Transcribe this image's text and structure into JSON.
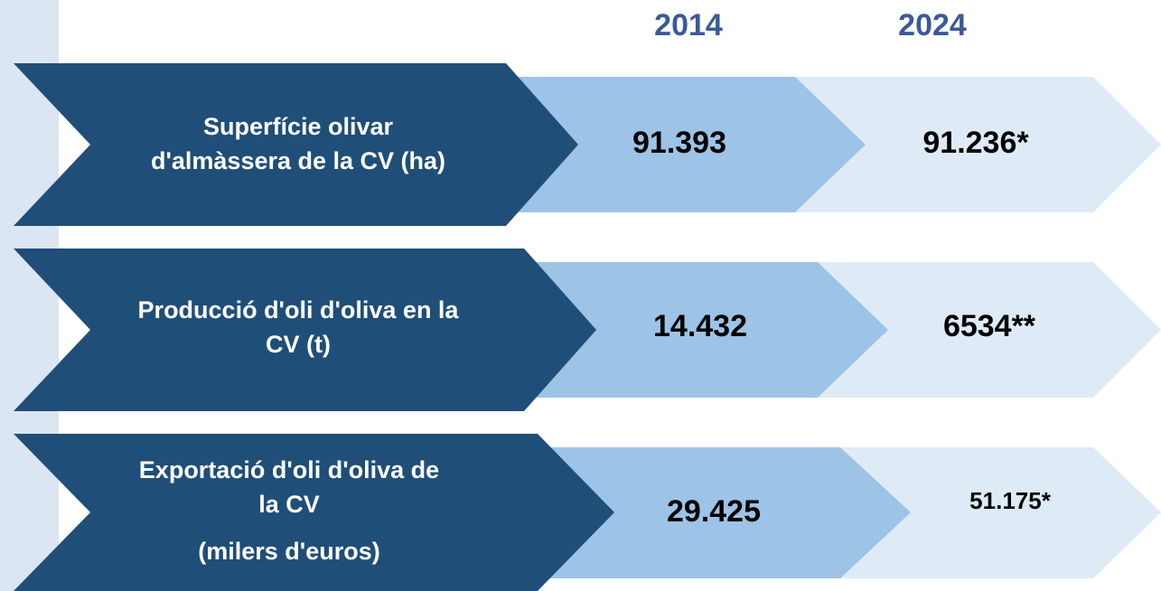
{
  "columns": [
    "2014",
    "2024"
  ],
  "rows": [
    {
      "label": [
        "Superfície olivar",
        "d'almàssera de la CV (ha)"
      ],
      "values": [
        "91.393",
        "91.236*"
      ]
    },
    {
      "label": [
        "Producció d'oli d'oliva en la",
        "CV (t)"
      ],
      "values": [
        "14.432",
        "6534**"
      ]
    },
    {
      "label": [
        "Exportació d'oli d'oliva de",
        "la CV",
        "(milers d'euros)"
      ],
      "values": [
        "29.425",
        "51.175*"
      ]
    }
  ]
}
